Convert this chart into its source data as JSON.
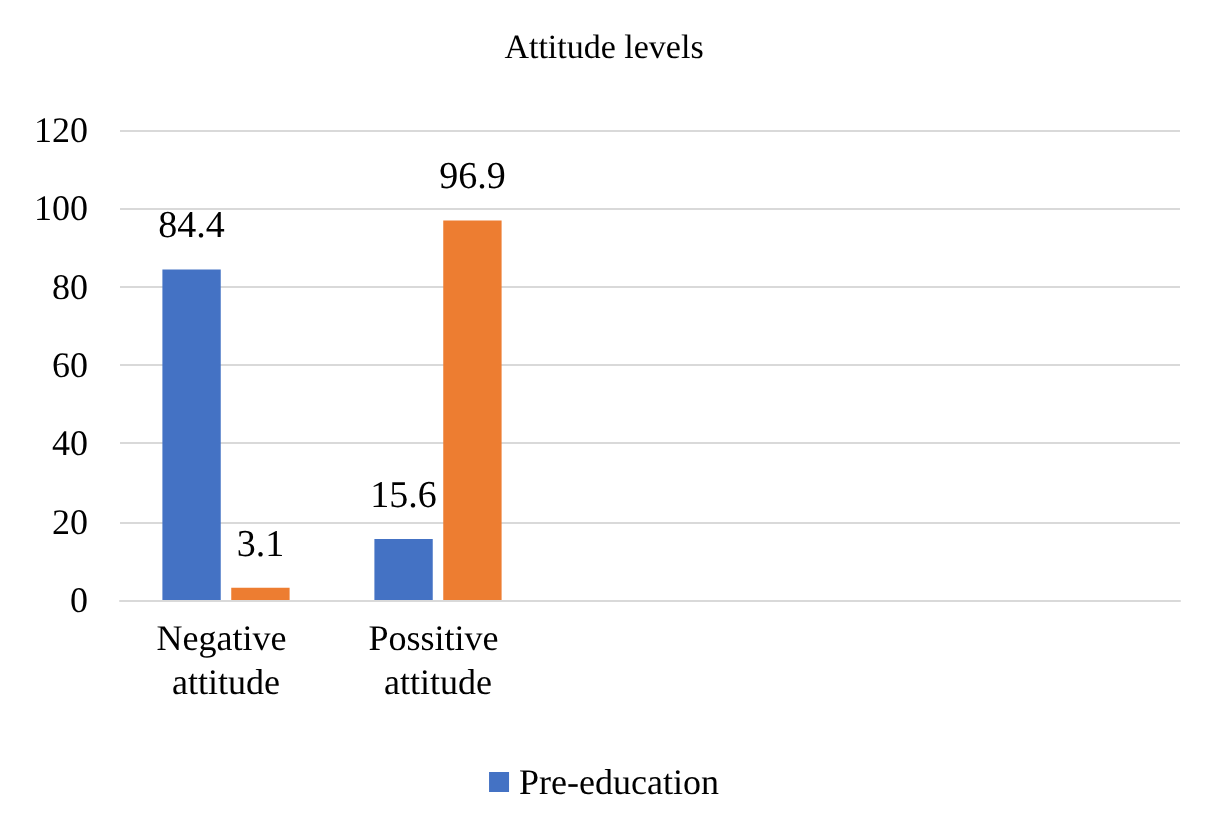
{
  "chart_data": {
    "type": "bar",
    "title": "Attitude levels",
    "categories": [
      "Negative attitude",
      "Possitive attitude",
      null,
      null,
      null
    ],
    "series": [
      {
        "name": "Pre-education",
        "color": "#4472c4",
        "values": [
          84.4,
          15.6,
          null,
          null,
          null
        ]
      },
      {
        "color": "#ed7d31",
        "values": [
          3.1,
          96.9,
          null,
          null,
          null
        ]
      }
    ],
    "ylim": [
      0,
      120
    ],
    "yticks": [
      0,
      20,
      40,
      60,
      80,
      100,
      120
    ],
    "grid": "y",
    "legend": "bottom",
    "data_labels": true
  }
}
